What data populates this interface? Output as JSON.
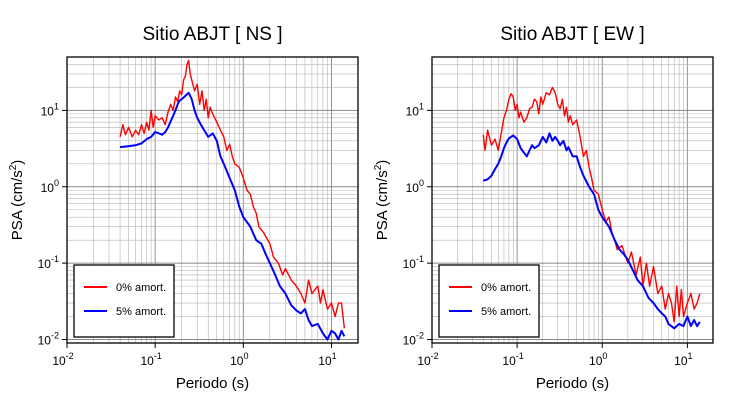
{
  "chart_data": [
    {
      "type": "line",
      "title": "Sitio ABJT [ NS ]",
      "xlabel": "Periodo (s)",
      "ylabel_main": "PSA (cm/s",
      "ylabel_sup": "2",
      "ylabel_tail": ")",
      "xscale": "log",
      "yscale": "log",
      "xlim": [
        0.01,
        20
      ],
      "ylim": [
        0.009,
        50
      ],
      "grid": true,
      "legend_position": "bottom-left",
      "series": [
        {
          "name": "0% amort.",
          "color": "#ff0000",
          "x": [
            0.04,
            0.043,
            0.046,
            0.05,
            0.055,
            0.06,
            0.065,
            0.07,
            0.075,
            0.08,
            0.085,
            0.09,
            0.095,
            0.1,
            0.11,
            0.12,
            0.13,
            0.14,
            0.15,
            0.16,
            0.17,
            0.18,
            0.19,
            0.2,
            0.21,
            0.22,
            0.23,
            0.24,
            0.25,
            0.26,
            0.28,
            0.3,
            0.32,
            0.34,
            0.36,
            0.38,
            0.4,
            0.42,
            0.45,
            0.5,
            0.55,
            0.6,
            0.65,
            0.7,
            0.75,
            0.8,
            0.9,
            1.0,
            1.1,
            1.2,
            1.3,
            1.4,
            1.5,
            1.7,
            2.0,
            2.2,
            2.5,
            2.8,
            3.0,
            3.5,
            4.0,
            4.5,
            5.0,
            5.5,
            6.0,
            6.5,
            7.0,
            7.5,
            8.0,
            9.0,
            10.0,
            11.0,
            12.0,
            13.0,
            14.0
          ],
          "y": [
            4.5,
            6.5,
            4.8,
            6.0,
            4.5,
            5.5,
            4.8,
            6.5,
            5.0,
            7.0,
            5.5,
            10.0,
            6.0,
            8.5,
            7.5,
            8.0,
            6.5,
            9.5,
            12.0,
            10.0,
            15.0,
            13.0,
            18.0,
            16.0,
            25.0,
            28.0,
            40.0,
            45.0,
            30.0,
            25.0,
            18.0,
            22.0,
            12.0,
            18.0,
            10.0,
            14.0,
            8.0,
            11.0,
            9.0,
            7.0,
            5.5,
            4.5,
            3.0,
            3.6,
            2.5,
            2.0,
            1.8,
            1.3,
            0.9,
            0.8,
            0.55,
            0.45,
            0.3,
            0.25,
            0.18,
            0.12,
            0.1,
            0.07,
            0.085,
            0.06,
            0.05,
            0.04,
            0.03,
            0.06,
            0.04,
            0.045,
            0.05,
            0.03,
            0.045,
            0.025,
            0.03,
            0.02,
            0.03,
            0.03,
            0.014
          ]
        },
        {
          "name": "5% amort.",
          "color": "#0000ff",
          "x": [
            0.04,
            0.05,
            0.06,
            0.07,
            0.08,
            0.09,
            0.1,
            0.11,
            0.12,
            0.13,
            0.14,
            0.15,
            0.16,
            0.17,
            0.18,
            0.19,
            0.2,
            0.22,
            0.24,
            0.26,
            0.28,
            0.3,
            0.33,
            0.36,
            0.4,
            0.45,
            0.5,
            0.55,
            0.6,
            0.7,
            0.8,
            0.9,
            1.0,
            1.2,
            1.4,
            1.6,
            1.8,
            2.0,
            2.3,
            2.6,
            3.0,
            3.5,
            4.0,
            4.5,
            5.0,
            5.5,
            6.0,
            7.0,
            8.0,
            9.0,
            10.0,
            11.0,
            12.0,
            13.0,
            14.0
          ],
          "y": [
            3.3,
            3.4,
            3.5,
            3.7,
            4.2,
            4.5,
            5.2,
            5.0,
            4.8,
            5.2,
            6.0,
            7.2,
            8.5,
            10.0,
            12.0,
            13.5,
            14.0,
            15.5,
            17.0,
            14.0,
            10.0,
            8.0,
            6.5,
            5.5,
            4.5,
            5.0,
            4.0,
            2.5,
            2.0,
            1.3,
            0.9,
            0.55,
            0.4,
            0.3,
            0.2,
            0.18,
            0.13,
            0.1,
            0.07,
            0.05,
            0.04,
            0.028,
            0.024,
            0.022,
            0.025,
            0.018,
            0.015,
            0.016,
            0.012,
            0.01,
            0.013,
            0.012,
            0.01,
            0.013,
            0.011
          ]
        }
      ]
    },
    {
      "type": "line",
      "title": "Sitio ABJT [ EW ]",
      "xlabel": "Periodo (s)",
      "ylabel_main": "PSA (cm/s",
      "ylabel_sup": "2",
      "ylabel_tail": ")",
      "xscale": "log",
      "yscale": "log",
      "xlim": [
        0.01,
        20
      ],
      "ylim": [
        0.009,
        50
      ],
      "grid": true,
      "legend_position": "bottom-left",
      "series": [
        {
          "name": "0% amort.",
          "color": "#ff0000",
          "x": [
            0.04,
            0.042,
            0.045,
            0.05,
            0.055,
            0.06,
            0.065,
            0.07,
            0.075,
            0.08,
            0.085,
            0.09,
            0.095,
            0.1,
            0.105,
            0.11,
            0.12,
            0.13,
            0.14,
            0.15,
            0.16,
            0.17,
            0.18,
            0.19,
            0.2,
            0.22,
            0.24,
            0.26,
            0.28,
            0.3,
            0.32,
            0.34,
            0.36,
            0.38,
            0.4,
            0.42,
            0.45,
            0.5,
            0.55,
            0.6,
            0.65,
            0.7,
            0.75,
            0.8,
            0.9,
            1.0,
            1.1,
            1.2,
            1.3,
            1.4,
            1.5,
            1.7,
            2.0,
            2.2,
            2.5,
            2.8,
            3.0,
            3.3,
            3.6,
            4.0,
            4.5,
            5.0,
            5.5,
            6.0,
            6.5,
            7.0,
            7.5,
            8.0,
            8.5,
            9.0,
            10.0,
            11.0,
            12.0,
            13.0,
            14.0
          ],
          "y": [
            4.8,
            3.0,
            5.5,
            3.5,
            4.2,
            3.0,
            5.0,
            8.0,
            10.0,
            14.0,
            16.5,
            15.0,
            10.0,
            12.0,
            8.0,
            9.5,
            7.0,
            8.0,
            10.5,
            11.0,
            14.0,
            13.0,
            9.0,
            15.0,
            12.0,
            17.0,
            16.0,
            20.0,
            17.0,
            12.0,
            10.5,
            14.0,
            8.5,
            11.0,
            7.0,
            8.5,
            6.5,
            7.5,
            4.5,
            2.5,
            3.0,
            1.8,
            1.3,
            0.9,
            0.8,
            0.5,
            0.35,
            0.4,
            0.25,
            0.2,
            0.15,
            0.17,
            0.1,
            0.14,
            0.07,
            0.12,
            0.05,
            0.1,
            0.05,
            0.09,
            0.04,
            0.05,
            0.025,
            0.04,
            0.03,
            0.017,
            0.05,
            0.02,
            0.045,
            0.02,
            0.03,
            0.04,
            0.025,
            0.03,
            0.04
          ]
        },
        {
          "name": "5% amort.",
          "color": "#0000ff",
          "x": [
            0.04,
            0.045,
            0.05,
            0.055,
            0.06,
            0.065,
            0.07,
            0.075,
            0.08,
            0.09,
            0.1,
            0.11,
            0.12,
            0.13,
            0.14,
            0.15,
            0.16,
            0.18,
            0.2,
            0.22,
            0.24,
            0.26,
            0.28,
            0.3,
            0.32,
            0.35,
            0.38,
            0.4,
            0.45,
            0.5,
            0.55,
            0.6,
            0.7,
            0.8,
            0.9,
            1.0,
            1.2,
            1.4,
            1.6,
            1.8,
            2.0,
            2.3,
            2.6,
            3.0,
            3.5,
            4.0,
            4.5,
            5.0,
            5.5,
            6.0,
            7.0,
            8.0,
            9.0,
            10.0,
            11.0,
            12.0,
            13.0,
            14.0
          ],
          "y": [
            1.2,
            1.25,
            1.4,
            1.7,
            2.0,
            2.5,
            3.2,
            3.8,
            4.3,
            4.7,
            4.2,
            3.2,
            2.8,
            2.5,
            3.0,
            3.5,
            3.2,
            3.5,
            4.5,
            3.8,
            5.0,
            4.0,
            4.5,
            4.0,
            3.5,
            4.0,
            3.0,
            3.3,
            2.5,
            2.5,
            1.8,
            1.4,
            1.0,
            0.8,
            0.5,
            0.4,
            0.3,
            0.2,
            0.15,
            0.13,
            0.11,
            0.08,
            0.06,
            0.05,
            0.035,
            0.03,
            0.025,
            0.022,
            0.02,
            0.016,
            0.014,
            0.016,
            0.015,
            0.02,
            0.015,
            0.018,
            0.015,
            0.017
          ]
        }
      ]
    }
  ]
}
